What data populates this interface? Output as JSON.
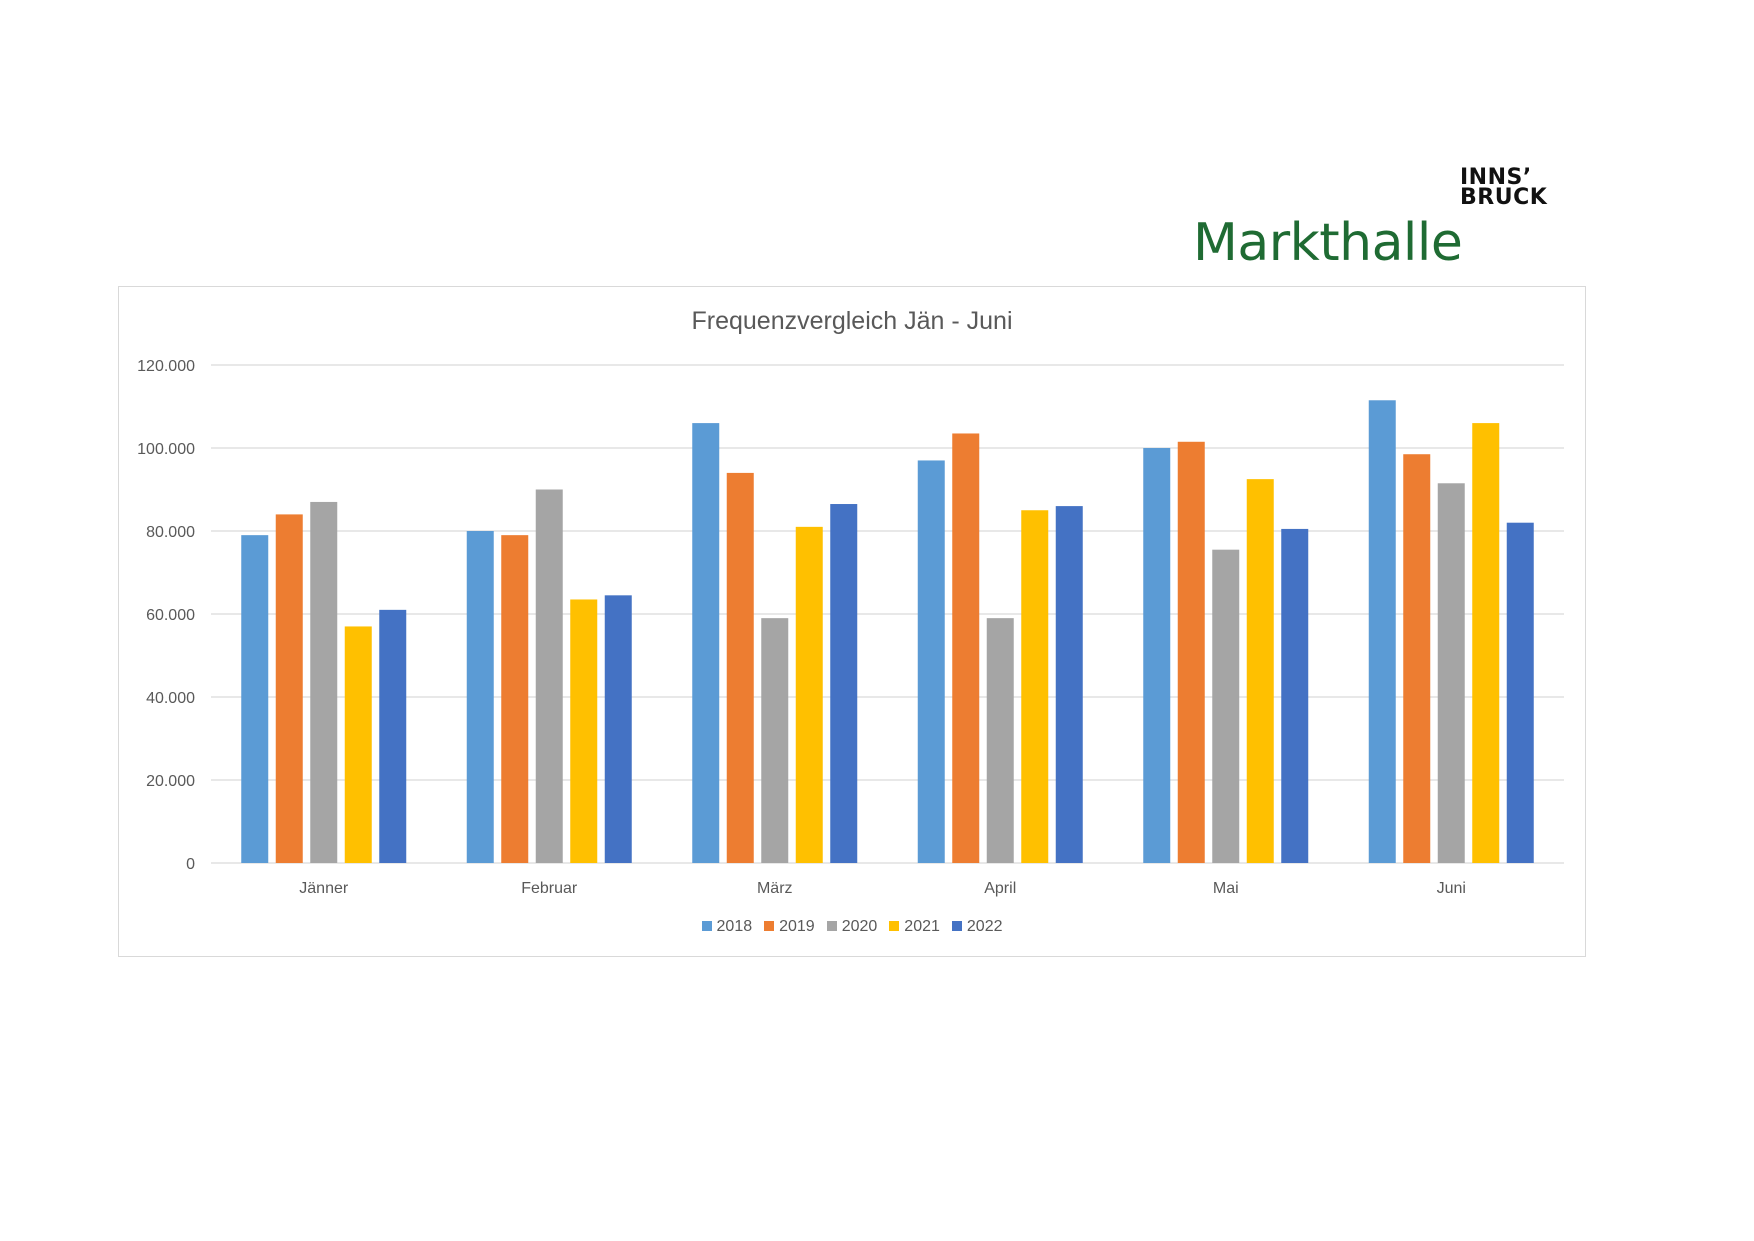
{
  "logo": {
    "line1": "INNS’",
    "line2": "BRUCK",
    "name": "Markthalle"
  },
  "chart_data": {
    "type": "bar",
    "title": "Frequenzvergleich Jän - Juni",
    "categories": [
      "Jänner",
      "Februar",
      "März",
      "April",
      "Mai",
      "Juni"
    ],
    "series": [
      {
        "name": "2018",
        "color": "#5b9bd5",
        "values": [
          79000,
          80000,
          106000,
          97000,
          100000,
          111500
        ]
      },
      {
        "name": "2019",
        "color": "#ed7d31",
        "values": [
          84000,
          79000,
          94000,
          103500,
          101500,
          98500
        ]
      },
      {
        "name": "2020",
        "color": "#a5a5a5",
        "values": [
          87000,
          90000,
          59000,
          59000,
          75500,
          91500
        ]
      },
      {
        "name": "2021",
        "color": "#ffc000",
        "values": [
          57000,
          63500,
          81000,
          85000,
          92500,
          106000
        ]
      },
      {
        "name": "2022",
        "color": "#4472c4",
        "values": [
          61000,
          64500,
          86500,
          86000,
          80500,
          82000
        ]
      }
    ],
    "yticks": [
      "0",
      "20.000",
      "40.000",
      "60.000",
      "80.000",
      "100.000",
      "120.000"
    ],
    "ylim": [
      0,
      120000
    ],
    "grid": true,
    "legend": "bottom"
  }
}
